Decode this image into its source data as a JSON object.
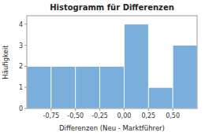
{
  "chart_data": {
    "type": "histogram",
    "title": "Histogramm für Differenzen",
    "xlabel": "Differenzen (Neu - Marktführer)",
    "ylabel": "Häufigkeit",
    "bins": [
      -1.0,
      -0.75,
      -0.5,
      -0.25,
      0.0,
      0.25,
      0.5,
      0.75
    ],
    "values": [
      2,
      2,
      2,
      2,
      4,
      1,
      3
    ],
    "color": "#7aaedb",
    "xlim": [
      -1.0,
      0.75
    ],
    "xticks": [
      {
        "value": -0.75,
        "label": "-0,75"
      },
      {
        "value": -0.5,
        "label": "-0,50"
      },
      {
        "value": -0.25,
        "label": "-0,25"
      },
      {
        "value": 0.0,
        "label": "0,00"
      },
      {
        "value": 0.25,
        "label": "0,25"
      },
      {
        "value": 0.5,
        "label": "0,50"
      }
    ],
    "ylim": [
      0,
      4.4
    ],
    "yticks": [
      0,
      1,
      2,
      3,
      4
    ],
    "grid": false
  }
}
